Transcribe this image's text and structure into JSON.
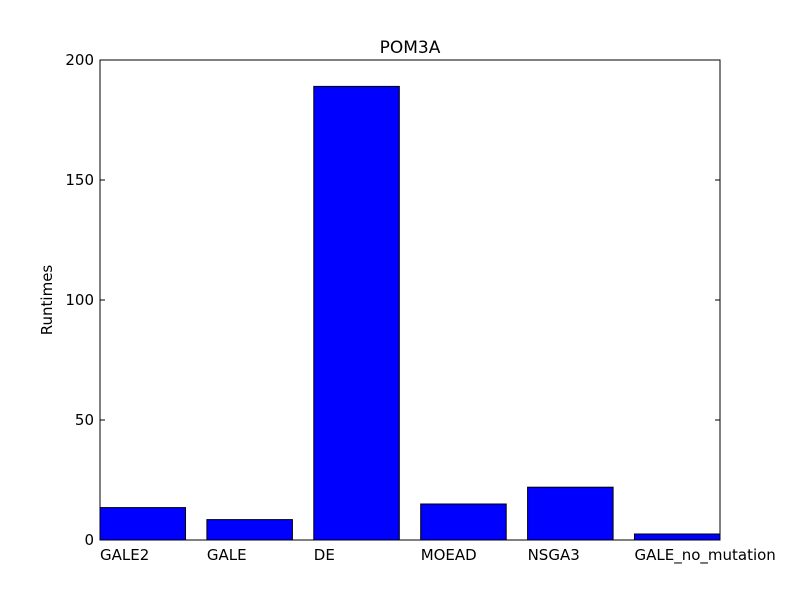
{
  "chart_data": {
    "type": "bar",
    "title": "POM3A",
    "xlabel": "",
    "ylabel": "Runtimes",
    "categories": [
      "GALE2",
      "GALE",
      "DE",
      "MOEAD",
      "NSGA3",
      "GALE_no_mutation"
    ],
    "values": [
      13.5,
      8.5,
      189,
      15,
      22,
      2.5
    ],
    "ylim": [
      0,
      200
    ],
    "yticks": [
      "0",
      "50",
      "100",
      "150",
      "200"
    ],
    "bar_color": "#0000ff",
    "edge_color": "#000000",
    "grid": false,
    "legend": "none"
  }
}
